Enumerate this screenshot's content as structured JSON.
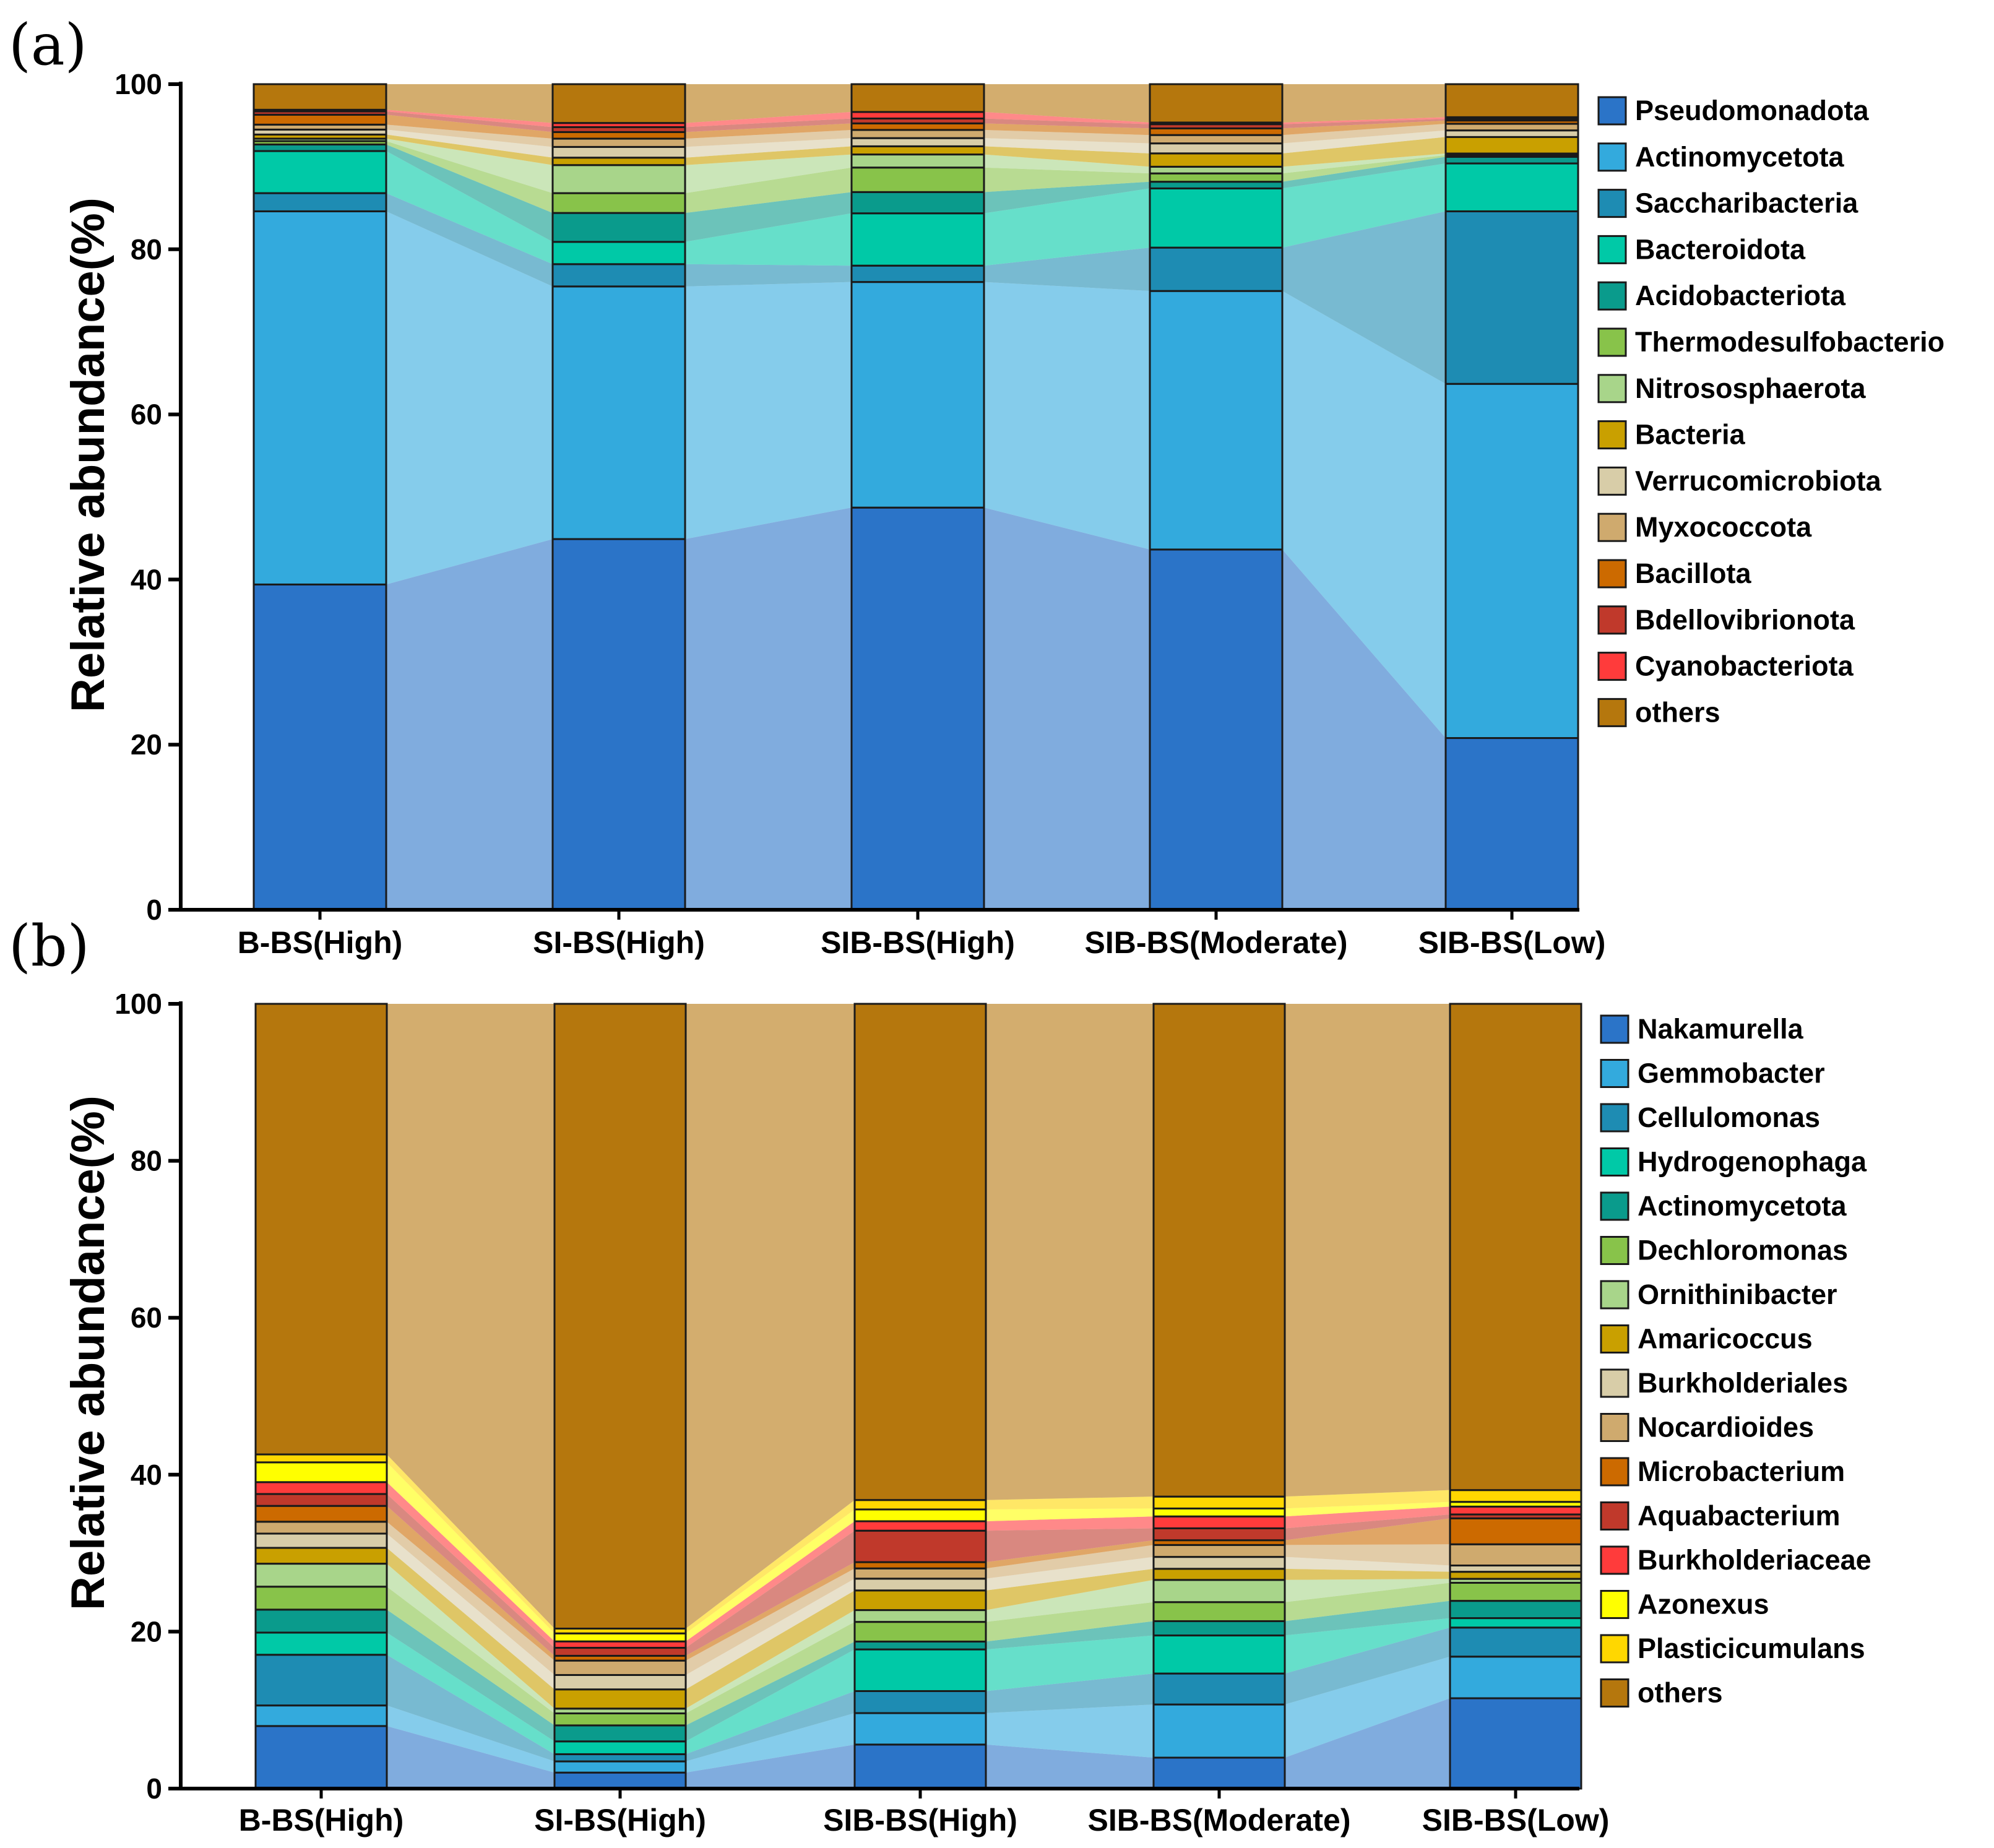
{
  "chart_data": [
    {
      "type": "bar",
      "subtype": "stacked-alluvial",
      "panel": "(a)",
      "ylabel": "Relative abundance(%)",
      "ylim": [
        0,
        100
      ],
      "yticks": [
        "0",
        "20",
        "40",
        "60",
        "80",
        "100"
      ],
      "categories": [
        "B-BS(High)",
        "SI-BS(High)",
        "SIB-BS(High)",
        "SIB-BS(Moderate)",
        "SIB-BS(Low)"
      ],
      "series": [
        {
          "name": "Pseudomonadota",
          "color": "#2b74c8",
          "values": [
            39.4,
            44.9,
            49.2,
            43.2,
            20.8
          ]
        },
        {
          "name": "Actinomycetota",
          "color": "#33aadd",
          "values": [
            45.2,
            30.6,
            27.6,
            31.0,
            42.9
          ]
        },
        {
          "name": "Saccharibacteria",
          "color": "#1e8cb3",
          "values": [
            2.2,
            2.7,
            2.0,
            5.2,
            20.9
          ]
        },
        {
          "name": "Bacteroidota",
          "color": "#00c9a7",
          "values": [
            5.1,
            2.7,
            6.4,
            7.1,
            5.8
          ]
        },
        {
          "name": "Acidobacteriota",
          "color": "#0a9b8c",
          "values": [
            0.8,
            3.5,
            2.6,
            0.8,
            0.8
          ]
        },
        {
          "name": "Thermodesulfobacterio",
          "color": "#88c34a",
          "values": [
            0.4,
            2.4,
            3.0,
            1.0,
            0.2
          ]
        },
        {
          "name": "Nitrososphaerota",
          "color": "#a8d58a",
          "values": [
            0.3,
            3.4,
            1.6,
            0.8,
            0.2
          ]
        },
        {
          "name": "Bacteria",
          "color": "#c9a000",
          "values": [
            0.5,
            0.9,
            1.0,
            1.6,
            2.0
          ]
        },
        {
          "name": "Verrucomicrobiota",
          "color": "#d8cda8",
          "values": [
            0.6,
            1.3,
            1.0,
            1.2,
            0.8
          ]
        },
        {
          "name": "Myxococcota",
          "color": "#cfaa6e",
          "values": [
            0.6,
            1.0,
            1.0,
            1.0,
            0.8
          ]
        },
        {
          "name": "Bacillota",
          "color": "#cc6a00",
          "values": [
            1.2,
            0.8,
            0.8,
            0.8,
            0.4
          ]
        },
        {
          "name": "Bdellovibrionota",
          "color": "#c0392b",
          "values": [
            0.4,
            0.6,
            0.6,
            0.5,
            0.2
          ]
        },
        {
          "name": "Cyanobacteriota",
          "color": "#ff3b3b",
          "values": [
            0.2,
            0.5,
            0.8,
            0.2,
            0.2
          ]
        },
        {
          "name": "others",
          "color": "#b5770d",
          "values": [
            3.1,
            4.7,
            3.4,
            4.6,
            4.0
          ]
        }
      ]
    },
    {
      "type": "bar",
      "subtype": "stacked-alluvial",
      "panel": "(b)",
      "ylabel": "Relative abundance(%)",
      "ylim": [
        0,
        100
      ],
      "yticks": [
        "0",
        "20",
        "40",
        "60",
        "80",
        "100"
      ],
      "categories": [
        "B-BS(High)",
        "SI-BS(High)",
        "SIB-BS(High)",
        "SIB-BS(Moderate)",
        "SIB-BS(Low)"
      ],
      "series": [
        {
          "name": "Nakamurella",
          "color": "#2b74c8",
          "values": [
            7.9,
            2.0,
            5.6,
            3.9,
            11.5
          ]
        },
        {
          "name": "Gemmobacter",
          "color": "#33aadd",
          "values": [
            2.6,
            1.4,
            4.0,
            6.7,
            5.3
          ]
        },
        {
          "name": "Cellulomonas",
          "color": "#1e8cb3",
          "values": [
            6.4,
            0.9,
            2.8,
            3.9,
            3.7
          ]
        },
        {
          "name": "Hydrogenophaga",
          "color": "#00c9a7",
          "values": [
            2.8,
            1.6,
            5.3,
            4.8,
            1.2
          ]
        },
        {
          "name": "Actinomycetota",
          "color": "#0a9b8c",
          "values": [
            2.9,
            2.0,
            1.0,
            1.8,
            2.2
          ]
        },
        {
          "name": "Dechloromonas",
          "color": "#88c34a",
          "values": [
            2.9,
            1.5,
            2.5,
            2.4,
            2.3
          ]
        },
        {
          "name": "Ornithinibacter",
          "color": "#a8d58a",
          "values": [
            2.9,
            0.6,
            1.5,
            2.8,
            0.5
          ]
        },
        {
          "name": "Amaricoccus",
          "color": "#c9a000",
          "values": [
            2.0,
            2.4,
            2.5,
            1.4,
            0.9
          ]
        },
        {
          "name": "Burkholderiales",
          "color": "#d8cda8",
          "values": [
            1.8,
            1.8,
            1.5,
            1.5,
            0.8
          ]
        },
        {
          "name": "Nocardioides",
          "color": "#cfaa6e",
          "values": [
            1.5,
            1.8,
            1.3,
            1.5,
            2.7
          ]
        },
        {
          "name": "Microbacterium",
          "color": "#cc6a00",
          "values": [
            2.0,
            0.6,
            0.8,
            0.6,
            3.3
          ]
        },
        {
          "name": "Aquabacterium",
          "color": "#c0392b",
          "values": [
            1.5,
            1.0,
            4.0,
            1.5,
            0.5
          ]
        },
        {
          "name": "Burkholderiaceae",
          "color": "#ff3b3b",
          "values": [
            1.5,
            0.8,
            1.2,
            1.5,
            1.0
          ]
        },
        {
          "name": "Azonexus",
          "color": "#ffff00",
          "values": [
            2.5,
            1.0,
            1.5,
            1.0,
            0.6
          ]
        },
        {
          "name": "Plasticicumulans",
          "color": "#ffd700",
          "values": [
            1.0,
            0.6,
            1.2,
            1.5,
            1.5
          ]
        },
        {
          "name": "others",
          "color": "#b5770d",
          "values": [
            56.9,
            78.1,
            63.1,
            62.1,
            61.9
          ]
        }
      ]
    }
  ]
}
